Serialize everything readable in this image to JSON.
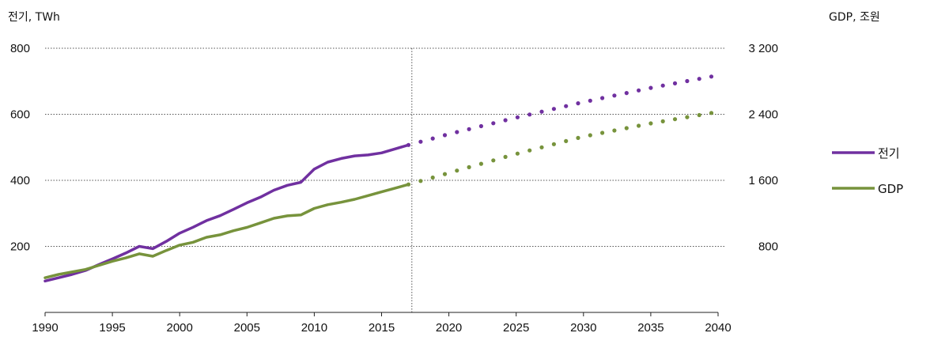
{
  "chart_data": {
    "type": "line",
    "y_left_label": "전기, TWh",
    "y_right_label": "GDP, 조원",
    "x_ticks": [
      "1990",
      "1995",
      "2000",
      "2005",
      "2010",
      "2015",
      "2020",
      "2025",
      "2030",
      "2035",
      "2040"
    ],
    "y_left_ticks": [
      "200",
      "400",
      "600",
      "800"
    ],
    "y_right_ticks": [
      "800",
      "1 600",
      "2 400",
      "3 200"
    ],
    "xlim": [
      1990,
      2040
    ],
    "ylim_left": [
      0,
      800
    ],
    "ylim_right": [
      0,
      3200
    ],
    "grid": "horizontal dotted",
    "projection_start": 2017,
    "legend_position": "right",
    "series": [
      {
        "name": "전기",
        "color": "#7030a0",
        "axis": "left",
        "historical": [
          [
            1990,
            95
          ],
          [
            1991,
            105
          ],
          [
            1992,
            115
          ],
          [
            1993,
            127
          ],
          [
            1994,
            145
          ],
          [
            1995,
            162
          ],
          [
            1996,
            180
          ],
          [
            1997,
            200
          ],
          [
            1998,
            193
          ],
          [
            1999,
            215
          ],
          [
            2000,
            240
          ],
          [
            2001,
            258
          ],
          [
            2002,
            278
          ],
          [
            2003,
            293
          ],
          [
            2004,
            312
          ],
          [
            2005,
            332
          ],
          [
            2006,
            349
          ],
          [
            2007,
            370
          ],
          [
            2008,
            385
          ],
          [
            2009,
            394
          ],
          [
            2010,
            434
          ],
          [
            2011,
            455
          ],
          [
            2012,
            466
          ],
          [
            2013,
            474
          ],
          [
            2014,
            477
          ],
          [
            2015,
            483
          ],
          [
            2016,
            495
          ],
          [
            2017,
            507
          ]
        ],
        "projection": [
          [
            2017,
            507
          ],
          [
            2020,
            540
          ],
          [
            2025,
            590
          ],
          [
            2030,
            637
          ],
          [
            2035,
            680
          ],
          [
            2040,
            718
          ]
        ]
      },
      {
        "name": "GDP",
        "color": "#77933c",
        "axis": "right",
        "historical": [
          [
            1990,
            420
          ],
          [
            1991,
            460
          ],
          [
            1992,
            490
          ],
          [
            1993,
            520
          ],
          [
            1994,
            570
          ],
          [
            1995,
            620
          ],
          [
            1996,
            660
          ],
          [
            1997,
            710
          ],
          [
            1998,
            680
          ],
          [
            1999,
            750
          ],
          [
            2000,
            815
          ],
          [
            2001,
            850
          ],
          [
            2002,
            910
          ],
          [
            2003,
            940
          ],
          [
            2004,
            990
          ],
          [
            2005,
            1030
          ],
          [
            2006,
            1085
          ],
          [
            2007,
            1140
          ],
          [
            2008,
            1170
          ],
          [
            2009,
            1180
          ],
          [
            2010,
            1260
          ],
          [
            2011,
            1305
          ],
          [
            2012,
            1335
          ],
          [
            2013,
            1370
          ],
          [
            2014,
            1415
          ],
          [
            2015,
            1460
          ],
          [
            2016,
            1505
          ],
          [
            2017,
            1550
          ]
        ],
        "projection": [
          [
            2017,
            1550
          ],
          [
            2020,
            1690
          ],
          [
            2025,
            1920
          ],
          [
            2030,
            2130
          ],
          [
            2035,
            2290
          ],
          [
            2040,
            2430
          ]
        ]
      }
    ]
  }
}
